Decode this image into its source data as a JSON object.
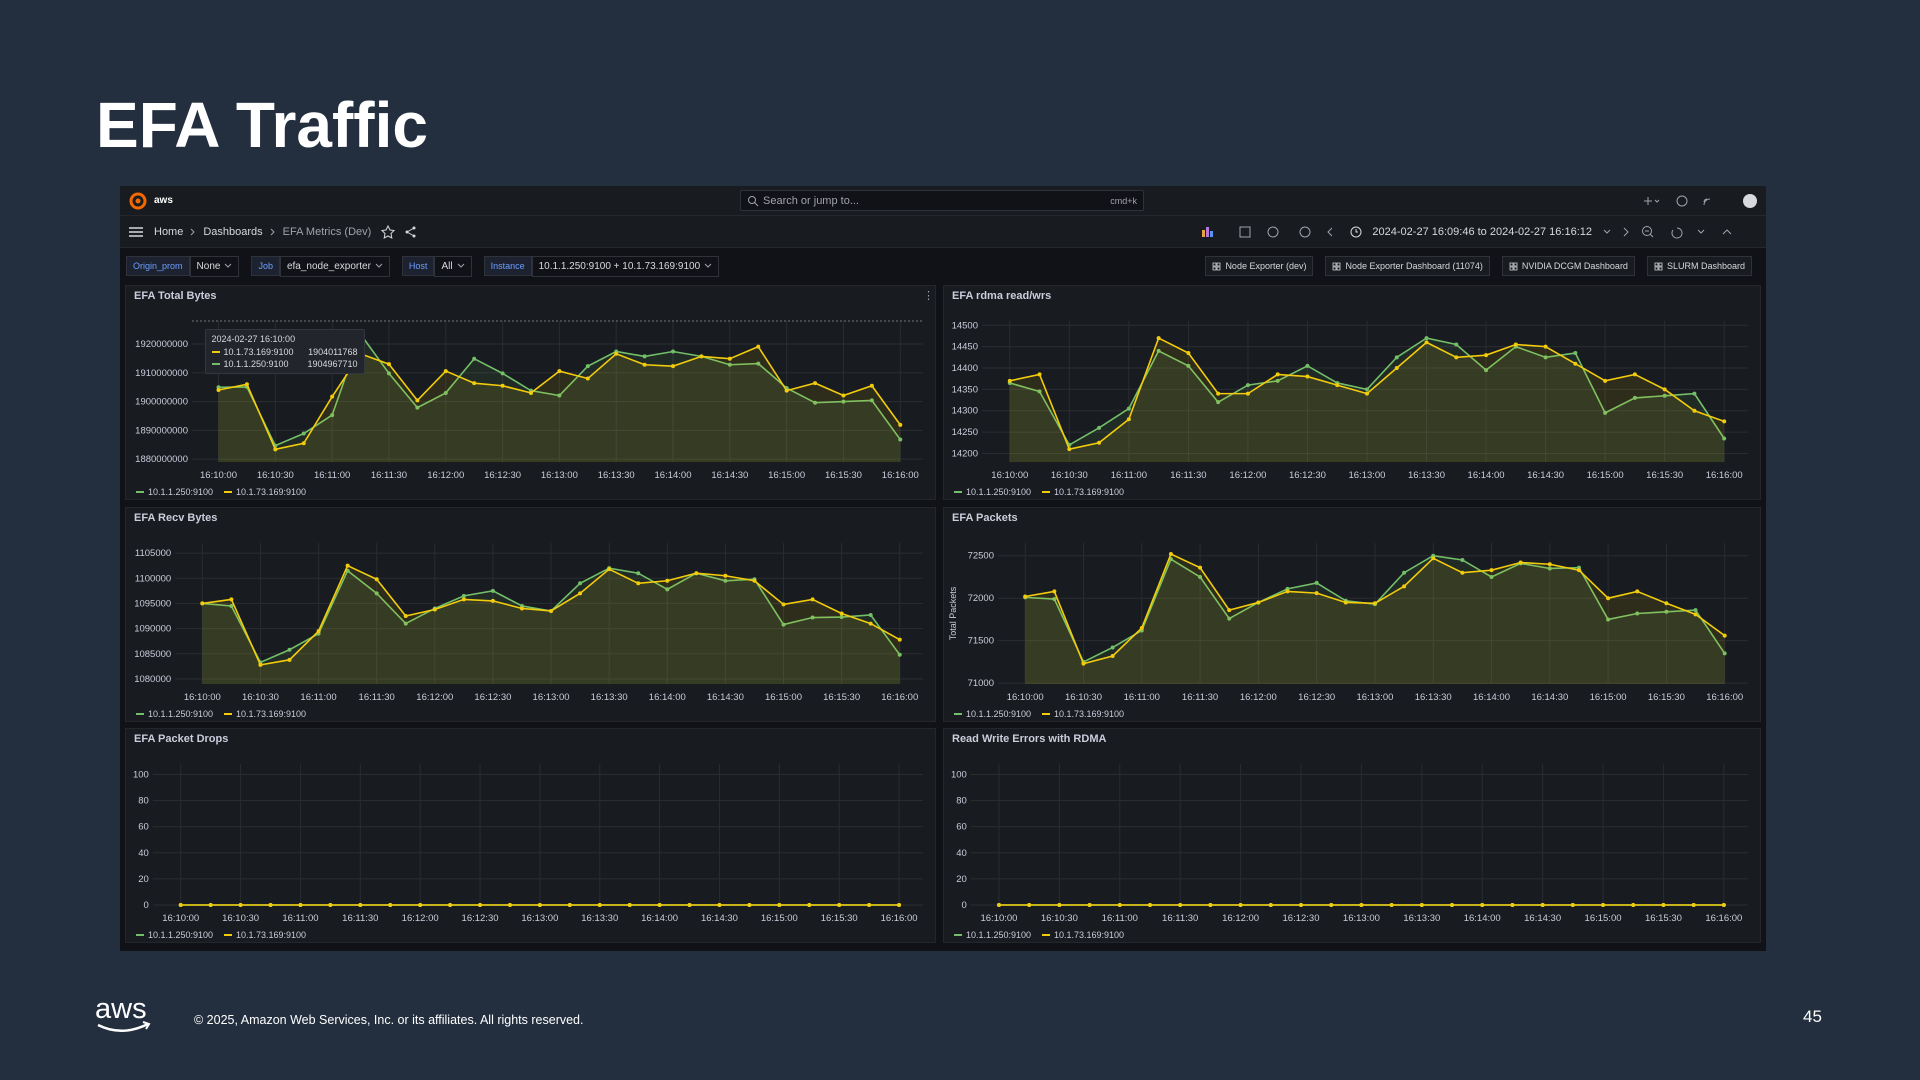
{
  "slide": {
    "title": "EFA Traffic",
    "logo": "aws",
    "footer": "© 2025, Amazon Web Services, Inc. or its affiliates. All rights reserved.",
    "page_number": "45"
  },
  "grafana": {
    "brand": "aws",
    "search": "Search or jump to...",
    "shortcut": "cmd+k",
    "breadcrumbs": [
      "Home",
      "Dashboards",
      "EFA Metrics (Dev)"
    ],
    "time_range": "2024-02-27 16:09:46 to 2024-02-27 16:16:12",
    "variables": [
      {
        "label": "Origin_prom",
        "value": "None"
      },
      {
        "label": "Job",
        "value": "efa_node_exporter"
      },
      {
        "label": "Host",
        "value": "All"
      },
      {
        "label": "Instance",
        "value": "10.1.1.250:9100 + 10.1.73.169:9100"
      }
    ],
    "links": [
      "Node Exporter (dev)",
      "Node Exporter Dashboard (11074)",
      "NVIDIA DCGM Dashboard",
      "SLURM Dashboard"
    ]
  },
  "chart_data": [
    {
      "type": "line",
      "title": "EFA Total Bytes",
      "tooltip_time": "2024-02-27 16:10:00",
      "x": [
        "16:10:00",
        "16:10:15",
        "16:10:30",
        "16:10:45",
        "16:11:00",
        "16:11:15",
        "16:11:30",
        "16:11:45",
        "16:12:00",
        "16:12:15",
        "16:12:30",
        "16:12:45",
        "16:13:00",
        "16:13:15",
        "16:13:30",
        "16:13:45",
        "16:14:00",
        "16:14:15",
        "16:14:30",
        "16:14:45",
        "16:15:00",
        "16:15:15",
        "16:15:30",
        "16:15:45",
        "16:16:00"
      ],
      "xlim": [
        "16:09:46",
        "16:16:12"
      ],
      "xticks": [
        "16:10:00",
        "16:10:30",
        "16:11:00",
        "16:11:30",
        "16:12:00",
        "16:12:30",
        "16:13:00",
        "16:13:30",
        "16:14:00",
        "16:14:30",
        "16:15:00",
        "16:15:30",
        "16:16:00"
      ],
      "ylim": [
        1879000000,
        1928000000
      ],
      "yticks": [
        1880000000,
        1890000000,
        1900000000,
        1910000000,
        1920000000
      ],
      "grid": true,
      "series": [
        {
          "name": "10.1.1.250:9100",
          "color": "#73bf69",
          "values": [
            1904967710,
            1905100000,
            1884700000,
            1888900000,
            1895300000,
            1923400000,
            1909800000,
            1897900000,
            1903000000,
            1914900000,
            1909800000,
            1903800000,
            1902100000,
            1912300000,
            1917400000,
            1915700000,
            1917400000,
            1915700000,
            1912800000,
            1913200000,
            1904700000,
            1899600000,
            1900000000,
            1900400000,
            1886800000
          ]
        },
        {
          "name": "10.1.73.169:9100",
          "color": "#f2cc0c",
          "values": [
            1904011768,
            1906000000,
            1883400000,
            1885500000,
            1901700000,
            1916600000,
            1913000000,
            1900400000,
            1910600000,
            1906400000,
            1905500000,
            1903000000,
            1910600000,
            1908000000,
            1916600000,
            1912800000,
            1912300000,
            1915700000,
            1914900000,
            1919100000,
            1903800000,
            1906400000,
            1902100000,
            1905500000,
            1891900000
          ]
        }
      ]
    },
    {
      "type": "line",
      "title": "EFA rdma read/wrs",
      "x": [
        "16:10:00",
        "16:10:15",
        "16:10:30",
        "16:10:45",
        "16:11:00",
        "16:11:15",
        "16:11:30",
        "16:11:45",
        "16:12:00",
        "16:12:15",
        "16:12:30",
        "16:12:45",
        "16:13:00",
        "16:13:15",
        "16:13:30",
        "16:13:45",
        "16:14:00",
        "16:14:15",
        "16:14:30",
        "16:14:45",
        "16:15:00",
        "16:15:15",
        "16:15:30",
        "16:15:45",
        "16:16:00"
      ],
      "xlim": [
        "16:09:46",
        "16:16:12"
      ],
      "xticks": [
        "16:10:00",
        "16:10:30",
        "16:11:00",
        "16:11:30",
        "16:12:00",
        "16:12:30",
        "16:13:00",
        "16:13:30",
        "16:14:00",
        "16:14:30",
        "16:15:00",
        "16:15:30",
        "16:16:00"
      ],
      "ylim": [
        14180,
        14510
      ],
      "yticks": [
        14200,
        14250,
        14300,
        14350,
        14400,
        14450,
        14500
      ],
      "grid": true,
      "series": [
        {
          "name": "10.1.1.250:9100",
          "color": "#73bf69",
          "values": [
            14365,
            14345,
            14220,
            14260,
            14305,
            14440,
            14405,
            14320,
            14360,
            14370,
            14405,
            14365,
            14350,
            14425,
            14470,
            14455,
            14395,
            14450,
            14425,
            14435,
            14295,
            14330,
            14335,
            14340,
            14235
          ]
        },
        {
          "name": "10.1.73.169:9100",
          "color": "#f2cc0c",
          "values": [
            14370,
            14385,
            14210,
            14225,
            14280,
            14470,
            14435,
            14340,
            14340,
            14385,
            14380,
            14360,
            14340,
            14400,
            14460,
            14425,
            14430,
            14455,
            14450,
            14410,
            14370,
            14385,
            14350,
            14300,
            14275
          ]
        }
      ]
    },
    {
      "type": "line",
      "title": "EFA Recv Bytes",
      "x": [
        "16:10:00",
        "16:10:15",
        "16:10:30",
        "16:10:45",
        "16:11:00",
        "16:11:15",
        "16:11:30",
        "16:11:45",
        "16:12:00",
        "16:12:15",
        "16:12:30",
        "16:12:45",
        "16:13:00",
        "16:13:15",
        "16:13:30",
        "16:13:45",
        "16:14:00",
        "16:14:15",
        "16:14:30",
        "16:14:45",
        "16:15:00",
        "16:15:15",
        "16:15:30",
        "16:15:45",
        "16:16:00"
      ],
      "xlim": [
        "16:09:46",
        "16:16:12"
      ],
      "xticks": [
        "16:10:00",
        "16:10:30",
        "16:11:00",
        "16:11:30",
        "16:12:00",
        "16:12:30",
        "16:13:00",
        "16:13:30",
        "16:14:00",
        "16:14:30",
        "16:15:00",
        "16:15:30",
        "16:16:00"
      ],
      "ylim": [
        1079000,
        1107000
      ],
      "yticks": [
        1080000,
        1085000,
        1090000,
        1095000,
        1100000,
        1105000
      ],
      "grid": true,
      "series": [
        {
          "name": "10.1.1.250:9100",
          "color": "#73bf69",
          "values": [
            1095000,
            1094500,
            1083300,
            1085800,
            1089000,
            1101500,
            1097000,
            1091000,
            1094000,
            1096500,
            1097500,
            1094500,
            1093500,
            1099000,
            1102000,
            1101000,
            1097800,
            1101000,
            1099500,
            1099800,
            1090800,
            1092200,
            1092300,
            1092700,
            1084800
          ]
        },
        {
          "name": "10.1.73.169:9100",
          "color": "#f2cc0c",
          "values": [
            1095000,
            1095800,
            1082800,
            1083800,
            1089500,
            1102500,
            1099800,
            1092500,
            1093800,
            1095800,
            1095500,
            1094000,
            1093500,
            1097000,
            1101800,
            1099000,
            1099500,
            1101000,
            1100500,
            1099500,
            1094800,
            1095800,
            1093000,
            1091000,
            1087800
          ]
        }
      ]
    },
    {
      "type": "line",
      "title": "EFA Packets",
      "y_label": "Total Packets",
      "x": [
        "16:10:00",
        "16:10:15",
        "16:10:30",
        "16:10:45",
        "16:11:00",
        "16:11:15",
        "16:11:30",
        "16:11:45",
        "16:12:00",
        "16:12:15",
        "16:12:30",
        "16:12:45",
        "16:13:00",
        "16:13:15",
        "16:13:30",
        "16:13:45",
        "16:14:00",
        "16:14:15",
        "16:14:30",
        "16:14:45",
        "16:15:00",
        "16:15:15",
        "16:15:30",
        "16:15:45",
        "16:16:00"
      ],
      "xlim": [
        "16:09:46",
        "16:16:12"
      ],
      "xticks": [
        "16:10:00",
        "16:10:30",
        "16:11:00",
        "16:11:30",
        "16:12:00",
        "16:12:30",
        "16:13:00",
        "16:13:30",
        "16:14:00",
        "16:14:30",
        "16:15:00",
        "16:15:30",
        "16:16:00"
      ],
      "ylim": [
        70990,
        72650
      ],
      "yticks": [
        71000,
        71500,
        72000,
        72500
      ],
      "grid": true,
      "series": [
        {
          "name": "10.1.1.250:9100",
          "color": "#73bf69",
          "values": [
            72010,
            71990,
            71250,
            71420,
            71620,
            72460,
            72250,
            71760,
            71950,
            72110,
            72180,
            71970,
            71930,
            72300,
            72500,
            72450,
            72250,
            72410,
            72350,
            72360,
            71750,
            71820,
            71840,
            71860,
            71350
          ]
        },
        {
          "name": "10.1.73.169:9100",
          "color": "#f2cc0c",
          "values": [
            72020,
            72080,
            71230,
            71320,
            71650,
            72520,
            72360,
            71860,
            71950,
            72080,
            72060,
            71950,
            71940,
            72140,
            72470,
            72300,
            72330,
            72420,
            72400,
            72330,
            72000,
            72080,
            71940,
            71810,
            71560
          ]
        }
      ]
    },
    {
      "type": "line",
      "title": "EFA Packet Drops",
      "x": [
        "16:10:00",
        "16:10:15",
        "16:10:30",
        "16:10:45",
        "16:11:00",
        "16:11:15",
        "16:11:30",
        "16:11:45",
        "16:12:00",
        "16:12:15",
        "16:12:30",
        "16:12:45",
        "16:13:00",
        "16:13:15",
        "16:13:30",
        "16:13:45",
        "16:14:00",
        "16:14:15",
        "16:14:30",
        "16:14:45",
        "16:15:00",
        "16:15:15",
        "16:15:30",
        "16:15:45",
        "16:16:00"
      ],
      "xlim": [
        "16:09:46",
        "16:16:12"
      ],
      "xticks": [
        "16:10:00",
        "16:10:30",
        "16:11:00",
        "16:11:30",
        "16:12:00",
        "16:12:30",
        "16:13:00",
        "16:13:30",
        "16:14:00",
        "16:14:30",
        "16:15:00",
        "16:15:30",
        "16:16:00"
      ],
      "ylim": [
        0,
        108
      ],
      "yticks": [
        0,
        20,
        40,
        60,
        80,
        100
      ],
      "grid": true,
      "series": [
        {
          "name": "10.1.1.250:9100",
          "color": "#73bf69",
          "values": [
            0,
            0,
            0,
            0,
            0,
            0,
            0,
            0,
            0,
            0,
            0,
            0,
            0,
            0,
            0,
            0,
            0,
            0,
            0,
            0,
            0,
            0,
            0,
            0,
            0
          ]
        },
        {
          "name": "10.1.73.169:9100",
          "color": "#f2cc0c",
          "values": [
            0,
            0,
            0,
            0,
            0,
            0,
            0,
            0,
            0,
            0,
            0,
            0,
            0,
            0,
            0,
            0,
            0,
            0,
            0,
            0,
            0,
            0,
            0,
            0,
            0
          ]
        }
      ]
    },
    {
      "type": "line",
      "title": "Read Write Errors with RDMA",
      "x": [
        "16:10:00",
        "16:10:15",
        "16:10:30",
        "16:10:45",
        "16:11:00",
        "16:11:15",
        "16:11:30",
        "16:11:45",
        "16:12:00",
        "16:12:15",
        "16:12:30",
        "16:12:45",
        "16:13:00",
        "16:13:15",
        "16:13:30",
        "16:13:45",
        "16:14:00",
        "16:14:15",
        "16:14:30",
        "16:14:45",
        "16:15:00",
        "16:15:15",
        "16:15:30",
        "16:15:45",
        "16:16:00"
      ],
      "xlim": [
        "16:09:46",
        "16:16:12"
      ],
      "xticks": [
        "16:10:00",
        "16:10:30",
        "16:11:00",
        "16:11:30",
        "16:12:00",
        "16:12:30",
        "16:13:00",
        "16:13:30",
        "16:14:00",
        "16:14:30",
        "16:15:00",
        "16:15:30",
        "16:16:00"
      ],
      "ylim": [
        0,
        108
      ],
      "yticks": [
        0,
        20,
        40,
        60,
        80,
        100
      ],
      "grid": true,
      "series": [
        {
          "name": "10.1.1.250:9100",
          "color": "#73bf69",
          "values": [
            0,
            0,
            0,
            0,
            0,
            0,
            0,
            0,
            0,
            0,
            0,
            0,
            0,
            0,
            0,
            0,
            0,
            0,
            0,
            0,
            0,
            0,
            0,
            0,
            0
          ]
        },
        {
          "name": "10.1.73.169:9100",
          "color": "#f2cc0c",
          "values": [
            0,
            0,
            0,
            0,
            0,
            0,
            0,
            0,
            0,
            0,
            0,
            0,
            0,
            0,
            0,
            0,
            0,
            0,
            0,
            0,
            0,
            0,
            0,
            0,
            0
          ]
        }
      ]
    }
  ]
}
